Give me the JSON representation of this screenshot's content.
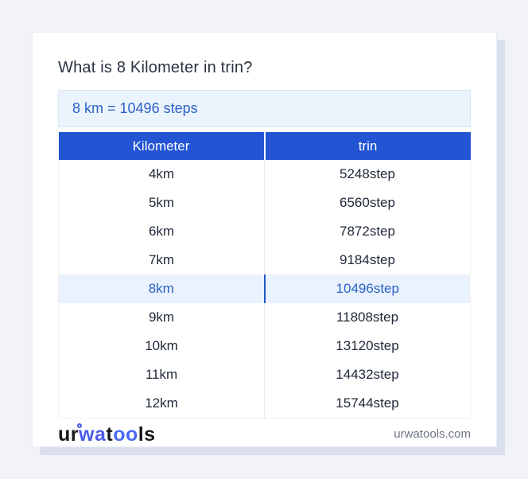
{
  "page": {
    "title": "What is 8 Kilometer in trin?"
  },
  "answer": {
    "text": "8 km = 10496 steps"
  },
  "table": {
    "headers": [
      "Kilometer",
      "trin"
    ],
    "rows": [
      {
        "km": "4km",
        "value": "5248step",
        "highlighted": false
      },
      {
        "km": "5km",
        "value": "6560step",
        "highlighted": false
      },
      {
        "km": "6km",
        "value": "7872step",
        "highlighted": false
      },
      {
        "km": "7km",
        "value": "9184step",
        "highlighted": false
      },
      {
        "km": "8km",
        "value": "10496step",
        "highlighted": true
      },
      {
        "km": "9km",
        "value": "11808step",
        "highlighted": false
      },
      {
        "km": "10km",
        "value": "13120step",
        "highlighted": false
      },
      {
        "km": "11km",
        "value": "14432step",
        "highlighted": false
      },
      {
        "km": "12km",
        "value": "15744step",
        "highlighted": false
      }
    ]
  },
  "footer": {
    "logo": {
      "part1": "ur",
      "part2": "wa",
      "part3": "t",
      "part4": "oo",
      "part5": "ls"
    },
    "site": "urwatools.com"
  },
  "colors": {
    "header_blue": "#2254d3",
    "highlight_bg": "#e9f2fd",
    "highlight_text": "#2b62c6",
    "answer_bg": "#ebf3fd",
    "page_bg": "#f1f3f8",
    "logo_blue": "#4c5ae9"
  }
}
